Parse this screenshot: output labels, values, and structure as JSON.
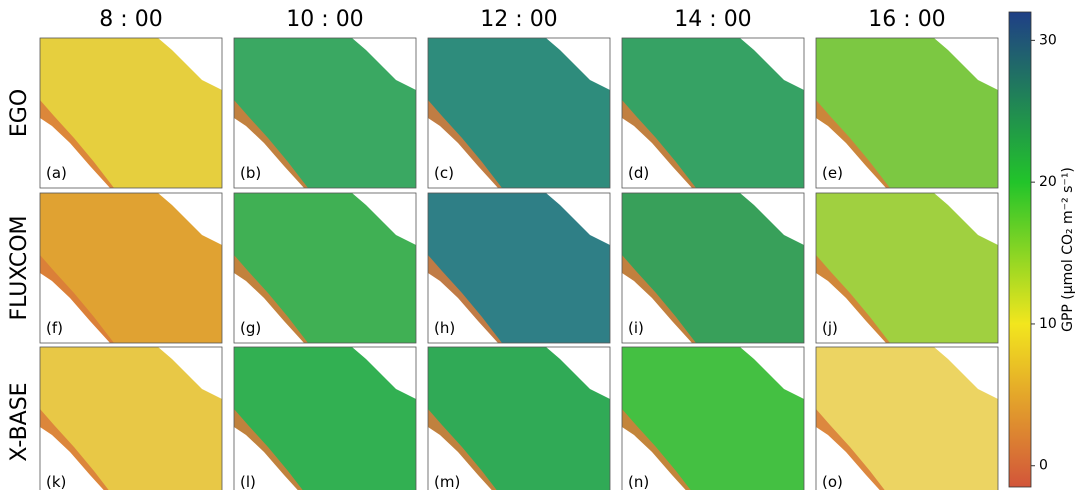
{
  "columns": [
    "8 : 00",
    "10 : 00",
    "12 : 00",
    "14 : 00",
    "16 : 00"
  ],
  "rows": [
    "EGO",
    "FLUXCOM",
    "X-BASE"
  ],
  "panels": [
    [
      {
        "label": "(a)",
        "color": "#e6cf3e"
      },
      {
        "label": "(b)",
        "color": "#3aa862"
      },
      {
        "label": "(c)",
        "color": "#2e8c7c"
      },
      {
        "label": "(d)",
        "color": "#36a264"
      },
      {
        "label": "(e)",
        "color": "#7cc842"
      }
    ],
    [
      {
        "label": "(f)",
        "color": "#e0a232"
      },
      {
        "label": "(g)",
        "color": "#40b054"
      },
      {
        "label": "(h)",
        "color": "#2f7f86"
      },
      {
        "label": "(i)",
        "color": "#38a05a"
      },
      {
        "label": "(j)",
        "color": "#a0d040"
      }
    ],
    [
      {
        "label": "(k)",
        "color": "#e8c846"
      },
      {
        "label": "(l)",
        "color": "#32b052"
      },
      {
        "label": "(m)",
        "color": "#30aa56"
      },
      {
        "label": "(n)",
        "color": "#44c042"
      },
      {
        "label": "(o)",
        "color": "#ecd462"
      }
    ]
  ],
  "colorbar": {
    "label": "GPP (μmol CO₂ m⁻² s⁻¹)",
    "lim": [
      -1.5,
      32
    ],
    "ticks": [
      0,
      10,
      20,
      30
    ],
    "stops": [
      {
        "value": -1.5,
        "color": "#d2553a"
      },
      {
        "value": 10,
        "color": "#f2e61e"
      },
      {
        "value": 20,
        "color": "#22c42a"
      },
      {
        "value": 32,
        "color": "#1f3f86"
      }
    ]
  }
}
